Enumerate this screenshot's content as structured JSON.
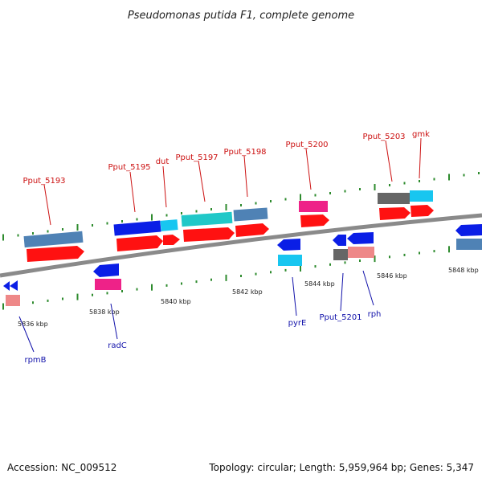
{
  "title": "Pseudomonas putida F1, complete genome",
  "accession": "Accession: NC_009512",
  "summary": "Topology: circular; Length: 5,959,964 bp; Genes: 5,347",
  "scale_labels": [
    "5836 kbp",
    "5838 kbp",
    "5840 kbp",
    "5842 kbp",
    "5844 kbp",
    "5846 kbp",
    "5848 kbp"
  ],
  "genes_top": [
    "Pput_5193",
    "Pput_5195",
    "dut",
    "Pput_5197",
    "Pput_5198",
    "Pput_5200",
    "Pput_5203",
    "gmk"
  ],
  "genes_bottom": [
    "rpmB",
    "radC",
    "pyrE",
    "Pput_5201",
    "rph"
  ],
  "colors": {
    "backbone": "#888888",
    "tick": "#2e8b2e",
    "feature_red": "#ff0000",
    "feature_steel": "#4f82b5",
    "feature_blue": "#0a1ee6",
    "feature_cyan": "#18c6f0",
    "feature_teal": "#20c8c8",
    "feature_pink": "#ee2288",
    "feature_salmon": "#ee8888",
    "feature_gray": "#666666"
  }
}
